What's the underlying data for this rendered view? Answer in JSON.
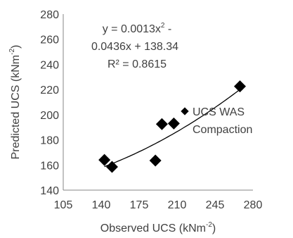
{
  "chart_data": {
    "type": "scatter",
    "xlabel_main": "Observed UCS (kNm",
    "xlabel_sup": "-2",
    "xlabel_end": ")",
    "ylabel_main": "Predicted UCS (kNm",
    "ylabel_sup": "-2",
    "ylabel_end": ")",
    "xlim": [
      105,
      280
    ],
    "ylim": [
      140,
      280
    ],
    "xticks": [
      "105",
      "140",
      "175",
      "210",
      "245",
      "280"
    ],
    "yticks": [
      "140",
      "160",
      "180",
      "200",
      "220",
      "240",
      "260",
      "280"
    ],
    "series": [
      {
        "name": "UCS WAS Compaction",
        "marker": "diamond",
        "color": "#000000",
        "points": [
          {
            "x": 143,
            "y": 164
          },
          {
            "x": 150,
            "y": 158.5
          },
          {
            "x": 190,
            "y": 163.5
          },
          {
            "x": 196,
            "y": 192.5
          },
          {
            "x": 207,
            "y": 193
          },
          {
            "x": 268,
            "y": 222.5
          }
        ]
      }
    ],
    "trendline": {
      "type": "polynomial",
      "order": 2,
      "coefficients": [
        0.0013,
        -0.0436,
        138.34
      ],
      "x_range": [
        143,
        268
      ],
      "color": "#000000"
    },
    "equation_line1_a": "y = 0.0013x",
    "equation_line1_sup": "2",
    "equation_line1_b": " -",
    "equation_line2": "0.0436x + 138.34",
    "r_squared_label": "R² = 0.8615",
    "legend": {
      "label_line1": "UCS WAS",
      "label_line2": "Compaction",
      "placement": "right"
    },
    "grid": false
  }
}
